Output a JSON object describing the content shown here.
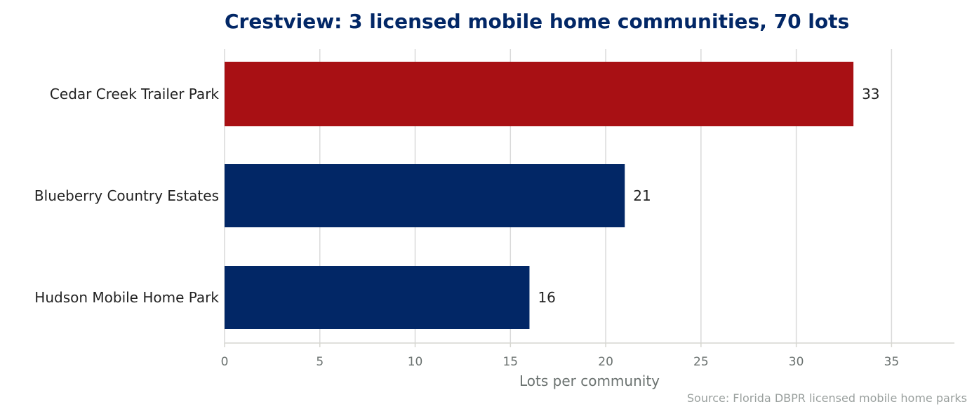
{
  "chart_data": {
    "type": "bar",
    "orientation": "horizontal",
    "title": "Crestview: 3 licensed mobile home communities, 70 lots",
    "categories": [
      "Cedar Creek Trailer Park",
      "Blueberry Country Estates",
      "Hudson Mobile Home Park"
    ],
    "values": [
      33,
      21,
      16
    ],
    "bar_colors": [
      "#a81014",
      "#022766",
      "#022766"
    ],
    "xlabel": "Lots per community",
    "ylabel": "",
    "xlim": [
      0,
      38.3
    ],
    "xticks": [
      0,
      5,
      10,
      15,
      20,
      25,
      30,
      35
    ],
    "grid": "vertical",
    "source": "Source: Florida DBPR licensed mobile home parks"
  },
  "colors": {
    "title": "#022766",
    "grid": "#d9d9d9",
    "axis": "#d6d6d0"
  }
}
